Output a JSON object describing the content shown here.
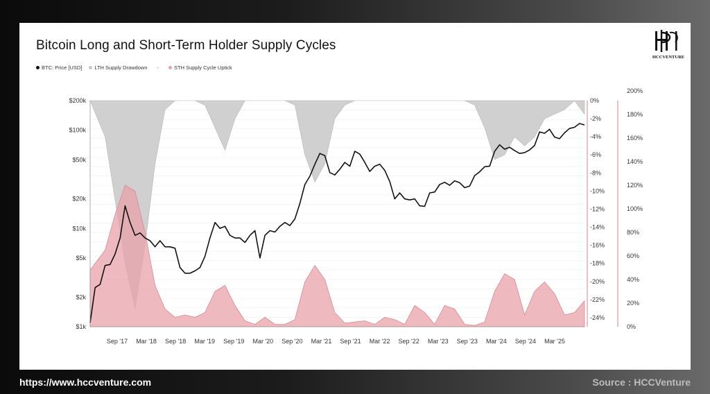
{
  "footer": {
    "url": "https://www.hccventure.com",
    "source": "Source : HCCVenture"
  },
  "logo": {
    "text": "HCCVENTURE"
  },
  "colors": {
    "price": "#111111",
    "lth": "#c8c8c8",
    "sth": "#e8a3aa",
    "sth_axis": "#d9828c"
  },
  "chart_data": {
    "type": "area",
    "title": "Bitcoin Long and Short-Term Holder Supply Cycles",
    "legend": [
      {
        "name": "BTC: Price [USD]",
        "color": "#111111"
      },
      {
        "name": "LTH Supply Drawdown",
        "color": "#c8c8c8"
      },
      {
        "name": "STH Supply Cycle Uptick",
        "color": "#e8a3aa"
      }
    ],
    "legend_separator": "-",
    "legend_position": "top-left",
    "x_tick_labels": [
      "Sep '17",
      "Mar '18",
      "Sep '18",
      "Mar '19",
      "Sep '19",
      "Mar '20",
      "Sep '20",
      "Mar '21",
      "Sep '21",
      "Mar '22",
      "Sep '22",
      "Mar '23",
      "Sep '23",
      "Mar '24",
      "Sep '24",
      "Mar '25"
    ],
    "x_range": [
      "2017-05",
      "2025-08"
    ],
    "y_left": {
      "scale": "log",
      "range": [
        1000,
        200000
      ],
      "tick_labels": [
        "$1k",
        "$2k",
        "$5k",
        "$10k",
        "$20k",
        "$50k",
        "$100k",
        "$200k"
      ],
      "tick_values": [
        1000,
        2000,
        5000,
        10000,
        20000,
        50000,
        100000,
        200000
      ]
    },
    "y_right_lth": {
      "range": [
        -25,
        0
      ],
      "tick_labels": [
        "0%",
        "-2%",
        "-4%",
        "-6%",
        "-8%",
        "-10%",
        "-12%",
        "-14%",
        "-16%",
        "-18%",
        "-20%",
        "-22%",
        "-24%"
      ],
      "tick_values": [
        0,
        -2,
        -4,
        -6,
        -8,
        -10,
        -12,
        -14,
        -16,
        -18,
        -20,
        -22,
        -24
      ]
    },
    "y_right_sth": {
      "range": [
        0,
        200
      ],
      "tick_labels": [
        "0%",
        "20%",
        "40%",
        "60%",
        "80%",
        "100%",
        "120%",
        "140%",
        "160%",
        "180%",
        "200%"
      ],
      "tick_values": [
        0,
        20,
        40,
        60,
        80,
        100,
        120,
        140,
        160,
        180,
        200
      ]
    },
    "series": [
      {
        "name": "BTC: Price [USD]",
        "axis": "left",
        "x": [
          "2017-05",
          "2017-06",
          "2017-07",
          "2017-08",
          "2017-09",
          "2017-10",
          "2017-11",
          "2017-12",
          "2018-01",
          "2018-02",
          "2018-03",
          "2018-04",
          "2018-05",
          "2018-06",
          "2018-07",
          "2018-08",
          "2018-09",
          "2018-10",
          "2018-11",
          "2018-12",
          "2019-01",
          "2019-02",
          "2019-03",
          "2019-04",
          "2019-05",
          "2019-06",
          "2019-07",
          "2019-08",
          "2019-09",
          "2019-10",
          "2019-11",
          "2019-12",
          "2020-01",
          "2020-02",
          "2020-03",
          "2020-04",
          "2020-05",
          "2020-06",
          "2020-07",
          "2020-08",
          "2020-09",
          "2020-10",
          "2020-11",
          "2020-12",
          "2021-01",
          "2021-02",
          "2021-03",
          "2021-04",
          "2021-05",
          "2021-06",
          "2021-07",
          "2021-08",
          "2021-09",
          "2021-10",
          "2021-11",
          "2021-12",
          "2022-01",
          "2022-02",
          "2022-03",
          "2022-04",
          "2022-05",
          "2022-06",
          "2022-07",
          "2022-08",
          "2022-09",
          "2022-10",
          "2022-11",
          "2022-12",
          "2023-01",
          "2023-02",
          "2023-03",
          "2023-04",
          "2023-05",
          "2023-06",
          "2023-07",
          "2023-08",
          "2023-09",
          "2023-10",
          "2023-11",
          "2023-12",
          "2024-01",
          "2024-02",
          "2024-03",
          "2024-04",
          "2024-05",
          "2024-06",
          "2024-07",
          "2024-08",
          "2024-09",
          "2024-10",
          "2024-11",
          "2024-12",
          "2025-01",
          "2025-02",
          "2025-03",
          "2025-04",
          "2025-05",
          "2025-06",
          "2025-07",
          "2025-08"
        ],
        "values": [
          1100,
          2500,
          2700,
          4200,
          4300,
          5500,
          8000,
          17000,
          11500,
          8500,
          9000,
          8000,
          7500,
          6500,
          7500,
          6500,
          6500,
          6300,
          4000,
          3500,
          3500,
          3700,
          4000,
          5200,
          8000,
          11500,
          10000,
          10500,
          8500,
          8000,
          8000,
          7200,
          8500,
          9500,
          5000,
          8500,
          9500,
          9200,
          10500,
          11500,
          10700,
          12500,
          18000,
          28000,
          34000,
          45000,
          58000,
          55000,
          37000,
          35000,
          40000,
          47000,
          43000,
          61000,
          57000,
          47000,
          38000,
          43000,
          45000,
          39000,
          30000,
          20000,
          23000,
          20000,
          19500,
          20000,
          17000,
          16800,
          23000,
          23500,
          28000,
          29500,
          27500,
          30500,
          29200,
          26000,
          27000,
          34500,
          37700,
          42500,
          43000,
          61000,
          71000,
          64000,
          67000,
          62000,
          58000,
          59000,
          63000,
          70000,
          96000,
          93000,
          102000,
          85000,
          82000,
          94000,
          104000,
          107000,
          117000,
          113000
        ]
      },
      {
        "name": "LTH Supply Drawdown",
        "axis": "right_lth",
        "x": [
          "2017-05",
          "2017-08",
          "2017-10",
          "2017-12",
          "2018-02",
          "2018-04",
          "2018-06",
          "2018-08",
          "2018-10",
          "2018-12",
          "2019-02",
          "2019-04",
          "2019-06",
          "2019-08",
          "2019-10",
          "2019-12",
          "2020-02",
          "2020-04",
          "2020-06",
          "2020-08",
          "2020-10",
          "2020-12",
          "2021-02",
          "2021-04",
          "2021-06",
          "2021-08",
          "2021-10",
          "2021-12",
          "2022-02",
          "2022-04",
          "2022-06",
          "2022-08",
          "2022-10",
          "2022-12",
          "2023-02",
          "2023-04",
          "2023-06",
          "2023-08",
          "2023-10",
          "2023-12",
          "2024-02",
          "2024-04",
          "2024-06",
          "2024-08",
          "2024-10",
          "2024-12",
          "2025-02",
          "2025-04",
          "2025-06",
          "2025-08"
        ],
        "values": [
          0,
          -4,
          -11,
          -18,
          -23,
          -16,
          -7,
          -1,
          0,
          0,
          0,
          -0.5,
          -3,
          -5.5,
          -2,
          0,
          0,
          0,
          0,
          0,
          -0.5,
          -6,
          -9,
          -7,
          -2,
          -0.5,
          0,
          0,
          0,
          0,
          0,
          0,
          0,
          0,
          0,
          0,
          0,
          0,
          -0.5,
          -3,
          -6.5,
          -6,
          -4,
          -5,
          -4,
          -2,
          -1.5,
          -1,
          0,
          -1.5
        ]
      },
      {
        "name": "STH Supply Cycle Uptick",
        "axis": "right_sth",
        "x": [
          "2017-05",
          "2017-08",
          "2017-10",
          "2017-12",
          "2018-02",
          "2018-04",
          "2018-06",
          "2018-08",
          "2018-10",
          "2018-12",
          "2019-02",
          "2019-04",
          "2019-06",
          "2019-08",
          "2019-10",
          "2019-12",
          "2020-02",
          "2020-04",
          "2020-06",
          "2020-08",
          "2020-10",
          "2020-12",
          "2021-02",
          "2021-04",
          "2021-06",
          "2021-08",
          "2021-10",
          "2021-12",
          "2022-02",
          "2022-04",
          "2022-06",
          "2022-08",
          "2022-10",
          "2022-12",
          "2023-02",
          "2023-04",
          "2023-06",
          "2023-08",
          "2023-10",
          "2023-12",
          "2024-02",
          "2024-04",
          "2024-06",
          "2024-08",
          "2024-10",
          "2024-12",
          "2025-02",
          "2025-04",
          "2025-06",
          "2025-08"
        ],
        "values": [
          48,
          65,
          95,
          120,
          115,
          80,
          35,
          15,
          8,
          10,
          8,
          12,
          30,
          35,
          18,
          5,
          2,
          8,
          2,
          2,
          6,
          38,
          52,
          40,
          12,
          3,
          4,
          5,
          2,
          8,
          6,
          2,
          18,
          12,
          2,
          18,
          15,
          2,
          1,
          4,
          30,
          45,
          40,
          10,
          30,
          38,
          28,
          10,
          12,
          22
        ]
      }
    ]
  }
}
